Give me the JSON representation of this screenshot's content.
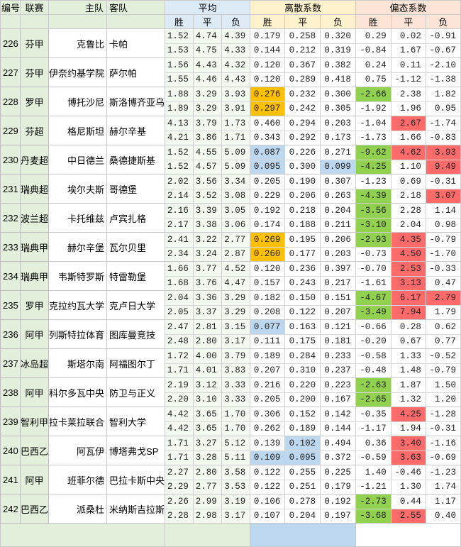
{
  "headers": {
    "idx": "编号",
    "league": "联赛",
    "home": "主队",
    "away": "客队",
    "avg": "平均",
    "lisan": "离散系数",
    "pian": "偏态系数",
    "w": "胜",
    "d": "平",
    "l": "负"
  },
  "colors": {
    "orange": "#ffc000",
    "blue": "#bdd7ee",
    "green": "#92d050",
    "red": "#ff6b6b"
  },
  "matches": [
    {
      "idx": "226",
      "league": "芬甲",
      "home": "克鲁比",
      "away": "卡帕",
      "r1": [
        "1.52",
        "4.74",
        "4.39",
        "0.179",
        "0.258",
        "0.320",
        "0.29",
        "0.02",
        "-0.91"
      ],
      "r2": [
        "1.53",
        "4.75",
        "4.33",
        "0.144",
        "0.212",
        "0.319",
        "-0.84",
        "1.67",
        "-0.67"
      ],
      "c1": [
        "",
        "",
        "",
        "",
        "",
        "",
        "",
        "",
        ""
      ],
      "c2": [
        "",
        "",
        "",
        "",
        "",
        "",
        "",
        "",
        ""
      ]
    },
    {
      "idx": "227",
      "league": "芬甲",
      "home": "伊奈约基学院",
      "away": "萨尔帕",
      "r1": [
        "1.56",
        "4.43",
        "4.32",
        "0.120",
        "0.367",
        "0.382",
        "0.24",
        "0.11",
        "-2.10"
      ],
      "r2": [
        "1.55",
        "4.46",
        "4.43",
        "0.120",
        "0.289",
        "0.418",
        "0.75",
        "-1.12",
        "-1.38"
      ],
      "c1": [
        "",
        "",
        "",
        "",
        "",
        "",
        "",
        "",
        ""
      ],
      "c2": [
        "",
        "",
        "",
        "",
        "",
        "",
        "",
        "",
        ""
      ]
    },
    {
      "idx": "228",
      "league": "罗甲",
      "home": "博托沙尼",
      "away": "斯洛博齐亚乌",
      "r1": [
        "1.88",
        "3.29",
        "3.93",
        "0.276",
        "0.232",
        "0.300",
        "-2.66",
        "2.38",
        "1.82"
      ],
      "r2": [
        "1.89",
        "3.29",
        "3.91",
        "0.297",
        "0.242",
        "0.305",
        "-1.92",
        "1.96",
        "0.95"
      ],
      "c1": [
        "",
        "",
        "",
        "o",
        "",
        "",
        "g",
        "",
        ""
      ],
      "c2": [
        "",
        "",
        "",
        "o",
        "",
        "",
        "",
        "",
        ""
      ]
    },
    {
      "idx": "229",
      "league": "芬超",
      "home": "格尼斯坦",
      "away": "赫尔辛基",
      "r1": [
        "4.13",
        "3.79",
        "1.73",
        "0.460",
        "0.294",
        "0.203",
        "-1.04",
        "2.67",
        "-1.74"
      ],
      "r2": [
        "4.21",
        "3.86",
        "1.71",
        "0.343",
        "0.292",
        "0.173",
        "-1.73",
        "1.66",
        "-0.83"
      ],
      "c1": [
        "",
        "",
        "",
        "",
        "",
        "",
        "",
        "r",
        ""
      ],
      "c2": [
        "",
        "",
        "",
        "",
        "",
        "",
        "",
        "",
        ""
      ]
    },
    {
      "idx": "230",
      "league": "丹麦超",
      "home": "中日德兰",
      "away": "桑德捷斯基",
      "r1": [
        "1.52",
        "4.55",
        "5.09",
        "0.087",
        "0.226",
        "0.271",
        "-9.62",
        "4.62",
        "3.93"
      ],
      "r2": [
        "1.52",
        "4.57",
        "5.09",
        "0.095",
        "0.300",
        "0.099",
        "-4.25",
        "1.10",
        "9.49"
      ],
      "c1": [
        "",
        "",
        "",
        "b",
        "",
        "",
        "g",
        "r",
        "r"
      ],
      "c2": [
        "",
        "",
        "",
        "b",
        "",
        "b",
        "g",
        "",
        "r"
      ]
    },
    {
      "idx": "231",
      "league": "瑞典超",
      "home": "埃尔夫斯",
      "away": "哥德堡",
      "r1": [
        "2.02",
        "3.56",
        "3.34",
        "0.205",
        "0.190",
        "0.307",
        "-1.23",
        "0.69",
        "-0.31"
      ],
      "r2": [
        "2.14",
        "3.52",
        "3.08",
        "0.229",
        "0.206",
        "0.263",
        "-4.39",
        "2.18",
        "3.07"
      ],
      "c1": [
        "",
        "",
        "",
        "",
        "",
        "",
        "",
        "",
        ""
      ],
      "c2": [
        "",
        "",
        "",
        "",
        "",
        "",
        "g",
        "",
        "r"
      ]
    },
    {
      "idx": "232",
      "league": "波兰超",
      "home": "卡托维兹",
      "away": "卢宾扎格",
      "r1": [
        "2.16",
        "3.39",
        "3.05",
        "0.192",
        "0.218",
        "0.204",
        "-3.56",
        "2.28",
        "1.14"
      ],
      "r2": [
        "2.17",
        "3.38",
        "3.06",
        "0.174",
        "0.188",
        "0.211",
        "-3.10",
        "2.04",
        "0.98"
      ],
      "c1": [
        "",
        "",
        "",
        "",
        "",
        "",
        "g",
        "",
        ""
      ],
      "c2": [
        "",
        "",
        "",
        "",
        "",
        "",
        "g",
        "",
        ""
      ]
    },
    {
      "idx": "233",
      "league": "瑞典甲",
      "home": "赫尔辛堡",
      "away": "瓦尔贝里",
      "r1": [
        "2.41",
        "3.22",
        "2.77",
        "0.269",
        "0.195",
        "0.206",
        "-2.93",
        "4.35",
        "-0.79"
      ],
      "r2": [
        "2.34",
        "3.24",
        "2.87",
        "0.260",
        "0.177",
        "0.203",
        "-0.73",
        "4.50",
        "-1.70"
      ],
      "c1": [
        "",
        "",
        "",
        "o",
        "",
        "",
        "g",
        "r",
        ""
      ],
      "c2": [
        "",
        "",
        "",
        "o",
        "",
        "",
        "",
        "r",
        ""
      ]
    },
    {
      "idx": "234",
      "league": "瑞典甲",
      "home": "韦斯特罗斯",
      "away": "特雷勒堡",
      "r1": [
        "1.66",
        "3.77",
        "4.52",
        "0.120",
        "0.236",
        "0.397",
        "-0.70",
        "2.53",
        "-0.33"
      ],
      "r2": [
        "1.68",
        "3.76",
        "4.47",
        "0.157",
        "0.243",
        "0.217",
        "-1.61",
        "3.13",
        "0.47"
      ],
      "c1": [
        "",
        "",
        "",
        "",
        "",
        "",
        "",
        "r",
        ""
      ],
      "c2": [
        "",
        "",
        "",
        "",
        "",
        "",
        "",
        "r",
        ""
      ]
    },
    {
      "idx": "235",
      "league": "罗甲",
      "home": "克拉约瓦大学",
      "away": "克卢日大学",
      "r1": [
        "2.04",
        "3.36",
        "3.29",
        "0.182",
        "0.150",
        "0.151",
        "-4.67",
        "6.17",
        "2.79"
      ],
      "r2": [
        "2.05",
        "3.37",
        "3.29",
        "0.208",
        "0.122",
        "0.207",
        "-3.49",
        "7.94",
        "1.79"
      ],
      "c1": [
        "",
        "",
        "",
        "",
        "",
        "",
        "g",
        "r",
        "r"
      ],
      "c2": [
        "",
        "",
        "",
        "",
        "",
        "",
        "g",
        "r",
        ""
      ]
    },
    {
      "idx": "236",
      "league": "阿甲",
      "home": "列斯特拉体育",
      "away": "图库曼竞技",
      "r1": [
        "2.47",
        "2.81",
        "3.15",
        "0.077",
        "0.163",
        "0.121",
        "-0.66",
        "0.28",
        "0.62"
      ],
      "r2": [
        "2.48",
        "2.80",
        "3.17",
        "0.111",
        "0.175",
        "0.181",
        "-0.20",
        "0.67",
        "0.77"
      ],
      "c1": [
        "",
        "",
        "",
        "b",
        "",
        "",
        "",
        "",
        ""
      ],
      "c2": [
        "",
        "",
        "",
        "",
        "",
        "",
        "",
        "",
        ""
      ]
    },
    {
      "idx": "237",
      "league": "冰岛超",
      "home": "斯塔尔南",
      "away": "阿福图尔丁",
      "r1": [
        "1.72",
        "4.00",
        "3.79",
        "0.189",
        "0.284",
        "0.233",
        "-0.58",
        "1.33",
        "-0.52"
      ],
      "r2": [
        "1.71",
        "4.01",
        "3.83",
        "0.207",
        "0.310",
        "0.237",
        "-0.48",
        "1.48",
        "-0.79"
      ],
      "c1": [
        "",
        "",
        "",
        "",
        "",
        "",
        "",
        "",
        ""
      ],
      "c2": [
        "",
        "",
        "",
        "",
        "",
        "",
        "",
        "",
        ""
      ]
    },
    {
      "idx": "238",
      "league": "阿甲",
      "home": "科尔多瓦中央",
      "away": "防卫与正义",
      "r1": [
        "2.19",
        "3.12",
        "3.33",
        "0.216",
        "0.220",
        "0.223",
        "-2.63",
        "1.87",
        "1.50"
      ],
      "r2": [
        "2.20",
        "3.10",
        "3.33",
        "0.205",
        "0.200",
        "0.167",
        "-2.65",
        "1.32",
        "1.20"
      ],
      "c1": [
        "",
        "",
        "",
        "",
        "",
        "",
        "g",
        "",
        ""
      ],
      "c2": [
        "",
        "",
        "",
        "",
        "",
        "",
        "g",
        "",
        ""
      ]
    },
    {
      "idx": "239",
      "league": "智利甲",
      "home": "拉卡莱拉联合",
      "away": "智利大学",
      "r1": [
        "4.42",
        "3.65",
        "1.70",
        "0.306",
        "0.152",
        "0.142",
        "-0.35",
        "4.25",
        "-1.28"
      ],
      "r2": [
        "4.42",
        "3.65",
        "1.70",
        "0.262",
        "0.189",
        "0.144",
        "-1.17",
        "1.94",
        "-0.31"
      ],
      "c1": [
        "",
        "",
        "",
        "",
        "",
        "",
        "",
        "r",
        ""
      ],
      "c2": [
        "",
        "",
        "",
        "",
        "",
        "",
        "",
        "",
        ""
      ]
    },
    {
      "idx": "240",
      "league": "巴西乙",
      "home": "阿瓦伊",
      "away": "博塔弗戈SP",
      "r1": [
        "1.71",
        "3.27",
        "5.12",
        "0.139",
        "0.102",
        "0.494",
        "0.36",
        "3.40",
        "-1.16"
      ],
      "r2": [
        "1.71",
        "3.28",
        "5.11",
        "0.109",
        "0.095",
        "0.372",
        "-0.59",
        "3.63",
        "-0.69"
      ],
      "c1": [
        "",
        "",
        "",
        "",
        "b",
        "",
        "",
        "r",
        ""
      ],
      "c2": [
        "",
        "",
        "",
        "b",
        "b",
        "",
        "",
        "r",
        ""
      ]
    },
    {
      "idx": "241",
      "league": "阿甲",
      "home": "班菲尔德",
      "away": "巴拉卡斯中央",
      "r1": [
        "2.27",
        "2.80",
        "3.58",
        "0.122",
        "0.255",
        "0.225",
        "1.40",
        "-0.46",
        "-1.23"
      ],
      "r2": [
        "2.29",
        "2.77",
        "3.53",
        "0.122",
        "0.251",
        "0.179",
        "-1.21",
        "1.30",
        "1.74"
      ],
      "c1": [
        "",
        "",
        "",
        "",
        "",
        "",
        "",
        "",
        ""
      ],
      "c2": [
        "",
        "",
        "",
        "",
        "",
        "",
        "",
        "",
        ""
      ]
    },
    {
      "idx": "242",
      "league": "巴西乙",
      "home": "派桑杜",
      "away": "米纳斯吉拉斯",
      "r1": [
        "2.26",
        "2.99",
        "3.19",
        "0.106",
        "0.278",
        "0.192",
        "-2.73",
        "0.44",
        "1.17"
      ],
      "r2": [
        "2.28",
        "2.98",
        "3.17",
        "0.107",
        "0.204",
        "0.197",
        "-3.68",
        "2.55",
        "0.40"
      ],
      "c1": [
        "",
        "",
        "",
        "",
        "",
        "",
        "g",
        "",
        ""
      ],
      "c2": [
        "",
        "",
        "",
        "",
        "",
        "",
        "g",
        "r",
        ""
      ]
    }
  ]
}
